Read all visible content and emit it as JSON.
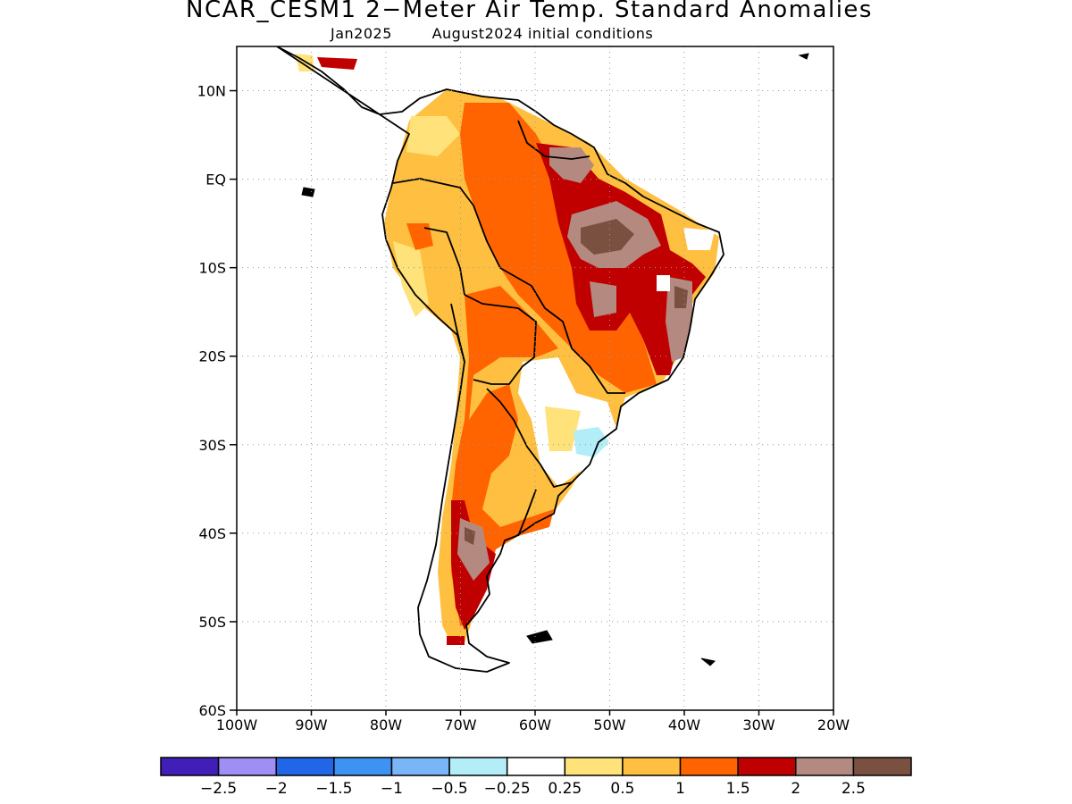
{
  "title": "NCAR_CESM1 2−Meter Air Temp. Standard Anomalies",
  "subtitle": "Jan2025        August2024 initial conditions",
  "map": {
    "lon_range": [
      -100,
      -20
    ],
    "lat_range": [
      -60,
      15
    ],
    "lat_ticks": [
      {
        "value": 10,
        "label": "10N"
      },
      {
        "value": 0,
        "label": "EQ"
      },
      {
        "value": -10,
        "label": "10S"
      },
      {
        "value": -20,
        "label": "20S"
      },
      {
        "value": -30,
        "label": "30S"
      },
      {
        "value": -40,
        "label": "40S"
      },
      {
        "value": -50,
        "label": "50S"
      },
      {
        "value": -60,
        "label": "60S"
      }
    ],
    "lon_ticks": [
      {
        "value": -100,
        "label": "100W"
      },
      {
        "value": -90,
        "label": "90W"
      },
      {
        "value": -80,
        "label": "80W"
      },
      {
        "value": -70,
        "label": "70W"
      },
      {
        "value": -60,
        "label": "60W"
      },
      {
        "value": -50,
        "label": "50W"
      },
      {
        "value": -40,
        "label": "40W"
      },
      {
        "value": -30,
        "label": "30W"
      },
      {
        "value": -20,
        "label": "20W"
      }
    ],
    "grid": "dotted"
  },
  "colorbar": {
    "colors": [
      "#3f1fb8",
      "#9f8ff5",
      "#2266e8",
      "#3d92f2",
      "#7ab6f7",
      "#b3eef8",
      "#ffffff",
      "#ffe27a",
      "#ffbf40",
      "#ff6400",
      "#c00000",
      "#b48a80",
      "#7a5040"
    ],
    "labels": [
      "−2.5",
      "−2",
      "−1.5",
      "−1",
      "−0.5",
      "−0.25",
      "0.25",
      "0.5",
      "1",
      "1.5",
      "2",
      "2.5"
    ]
  }
}
